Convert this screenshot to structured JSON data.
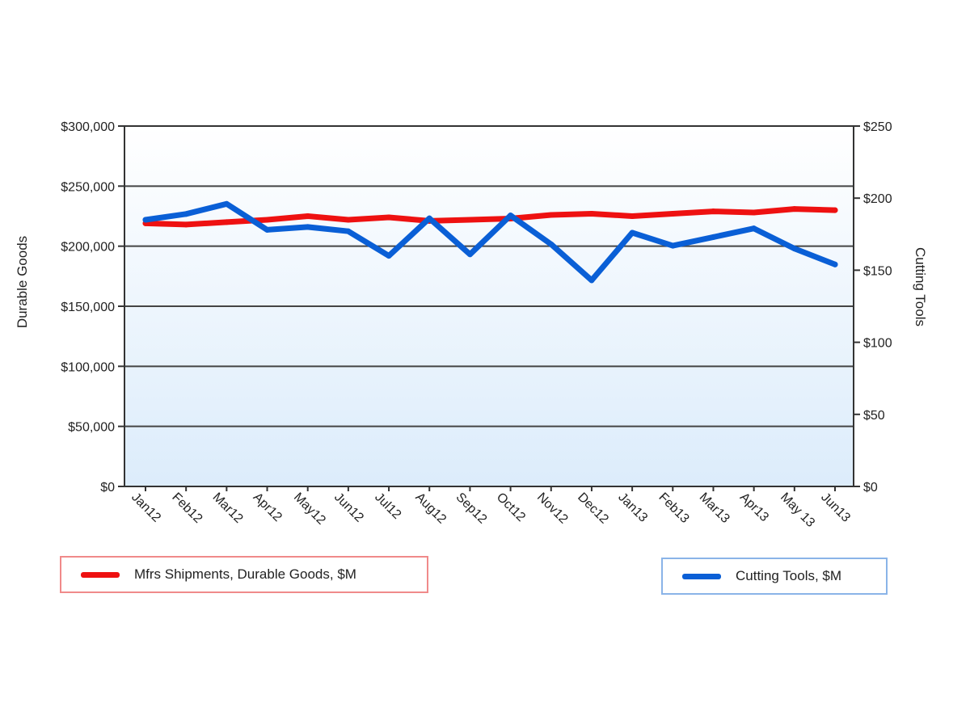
{
  "chart_data": {
    "type": "line",
    "categories": [
      "Jan12",
      "Feb12",
      "Mar12",
      "Apr12",
      "May12",
      "Jun12",
      "Jul12",
      "Aug12",
      "Sep12",
      "Oct12",
      "Nov12",
      "Dec12",
      "Jan13",
      "Feb13",
      "Mar13",
      "Apr13",
      "May 13",
      "Jun13"
    ],
    "left_axis": {
      "label": "Durable Goods",
      "ylim": [
        0,
        300000
      ],
      "ticks": [
        0,
        50000,
        100000,
        150000,
        200000,
        250000,
        300000
      ],
      "tick_labels": [
        "$0",
        "$50,000",
        "$100,000",
        "$150,000",
        "$200,000",
        "$250,000",
        "$300,000"
      ]
    },
    "right_axis": {
      "label": "Cutting Tools",
      "ylim": [
        0,
        250
      ],
      "ticks": [
        0,
        50,
        100,
        150,
        200,
        250
      ],
      "tick_labels": [
        "$0",
        "$50",
        "$100",
        "$150",
        "$200",
        "$250"
      ]
    },
    "series": [
      {
        "name": "Mfrs Shipments, Durable Goods, $M",
        "axis": "left",
        "color": "#ee1111",
        "values": [
          219000,
          218000,
          220000,
          222000,
          225000,
          222000,
          224000,
          221000,
          222000,
          223000,
          226000,
          227000,
          225000,
          227000,
          229000,
          228000,
          231000,
          230000
        ]
      },
      {
        "name": "Cutting Tools, $M",
        "axis": "right",
        "color": "#0a5fd6",
        "values": [
          185,
          189,
          196,
          178,
          180,
          177,
          160,
          186,
          161,
          188,
          168,
          143,
          176,
          167,
          173,
          179,
          165,
          154
        ]
      }
    ],
    "grid": true,
    "legend": [
      {
        "label": "Mfrs Shipments, Durable Goods, $M",
        "color": "#ee1111",
        "border": "#f08a8a"
      },
      {
        "label": "Cutting Tools, $M",
        "color": "#0a5fd6",
        "border": "#8ab4e8"
      }
    ]
  }
}
